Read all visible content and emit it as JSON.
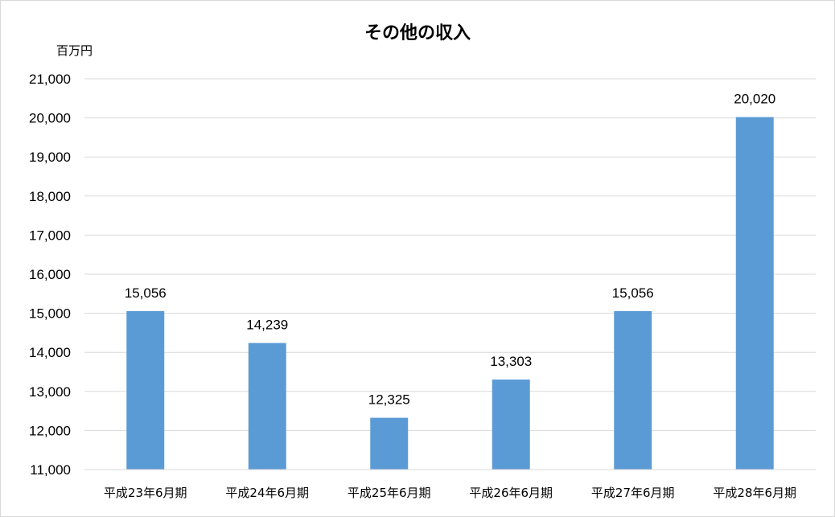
{
  "chart_data": {
    "type": "bar",
    "title": "その他の収入",
    "unit_label": "百万円",
    "categories": [
      "平成23年6月期",
      "平成24年6月期",
      "平成25年6月期",
      "平成26年6月期",
      "平成27年6月期",
      "平成28年6月期"
    ],
    "values": [
      15056,
      14239,
      12325,
      13303,
      15056,
      20020
    ],
    "value_labels": [
      "15,056",
      "14,239",
      "12,325",
      "13,303",
      "15,056",
      "20,020"
    ],
    "ylim": [
      11000,
      21000
    ],
    "yticks": [
      11000,
      12000,
      13000,
      14000,
      15000,
      16000,
      17000,
      18000,
      19000,
      20000,
      21000
    ],
    "ytick_labels": [
      "11,000",
      "12,000",
      "13,000",
      "14,000",
      "15,000",
      "16,000",
      "17,000",
      "18,000",
      "19,000",
      "20,000",
      "21,000"
    ],
    "grid": true,
    "legend": "none",
    "colors": {
      "bar": "#5b9bd5",
      "grid": "#d9d9d9",
      "axis": "#d9d9d9"
    }
  }
}
